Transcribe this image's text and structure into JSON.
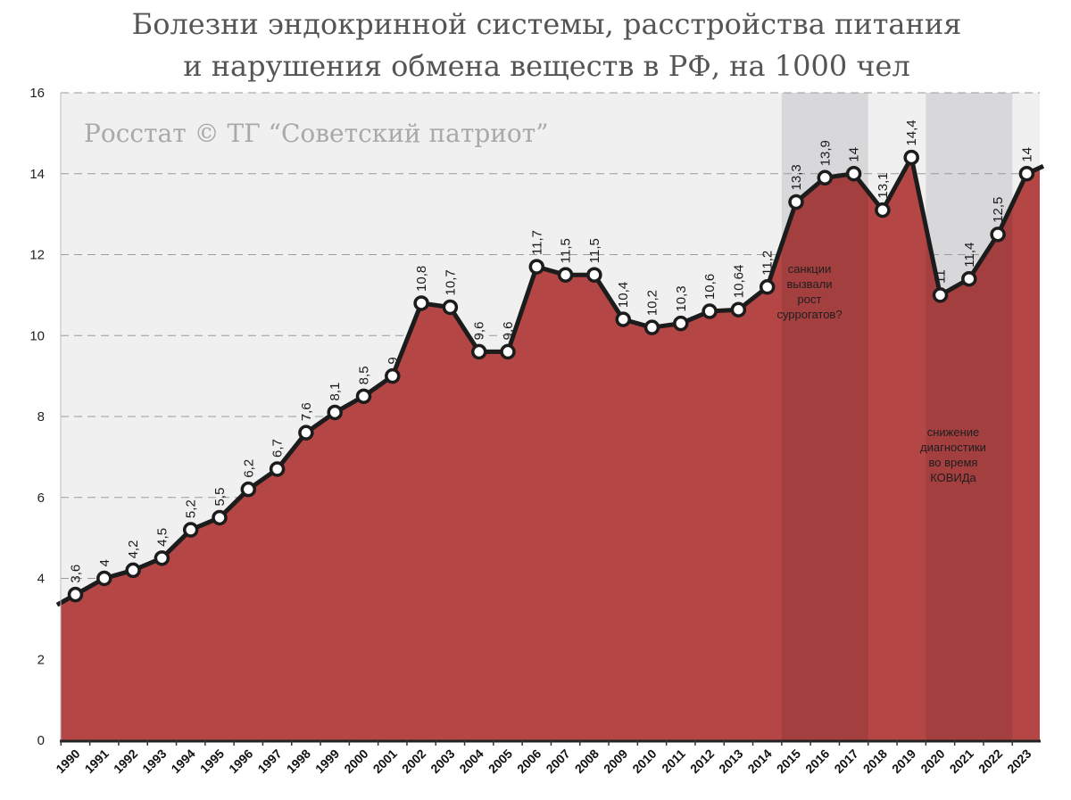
{
  "title_lines": [
    "Болезни эндокринной системы, расстройства питания",
    "и нарушения обмена веществ в РФ, на 1000 чел"
  ],
  "watermark": "Росстат © ТГ “Советский патриот”",
  "chart_data": {
    "type": "area",
    "title": "Болезни эндокринной системы, расстройства питания и нарушения обмена веществ в РФ, на 1000 чел",
    "x": [
      "1990",
      "1991",
      "1992",
      "1993",
      "1994",
      "1995",
      "1996",
      "1997",
      "1998",
      "1999",
      "2000",
      "2001",
      "2002",
      "2003",
      "2004",
      "2005",
      "2006",
      "2007",
      "2008",
      "2009",
      "2010",
      "2011",
      "2012",
      "2013",
      "2014",
      "2015",
      "2016",
      "2017",
      "2018",
      "2019",
      "2020",
      "2021",
      "2022",
      "2023"
    ],
    "values": [
      3.6,
      4,
      4.2,
      4.5,
      5.2,
      5.5,
      6.2,
      6.7,
      7.6,
      8.1,
      8.5,
      9,
      10.8,
      10.7,
      9.6,
      9.6,
      11.7,
      11.5,
      11.5,
      10.4,
      10.2,
      10.3,
      10.6,
      10.64,
      11.2,
      13.3,
      13.9,
      14,
      13.1,
      14.4,
      11,
      11.4,
      12.5,
      14
    ],
    "labels": [
      "3,6",
      "4",
      "4,2",
      "4,5",
      "5,2",
      "5,5",
      "6,2",
      "6,7",
      "7,6",
      "8,1",
      "8,5",
      "9",
      "10,8",
      "10,7",
      "9,6",
      "9,6",
      "11,7",
      "11,5",
      "11,5",
      "10,4",
      "10,2",
      "10,3",
      "10,6",
      "10,64",
      "11,2",
      "13,3",
      "13,9",
      "14",
      "13,1",
      "14,4",
      "11",
      "11,4",
      "12,5",
      "14"
    ],
    "ylim": [
      0,
      16
    ],
    "yticks": [
      0,
      2,
      4,
      6,
      8,
      10,
      12,
      14,
      16
    ],
    "grid": true,
    "colors": {
      "area": "#b54646",
      "line": "#1c1c1c",
      "plot_bg": "#f0f0f0",
      "shade": "#d8d8da",
      "shade_area": "#a43f3f",
      "gridline": "#9a9a9a"
    },
    "shaded_ranges": [
      {
        "from": "2015",
        "to": "2017",
        "annotation": [
          "санкции",
          "вызвали",
          "рост",
          "суррогатов?"
        ]
      },
      {
        "from": "2020",
        "to": "2022",
        "annotation": [
          "снижение",
          "диагностики",
          "во время",
          "КОВИДа"
        ]
      }
    ]
  }
}
